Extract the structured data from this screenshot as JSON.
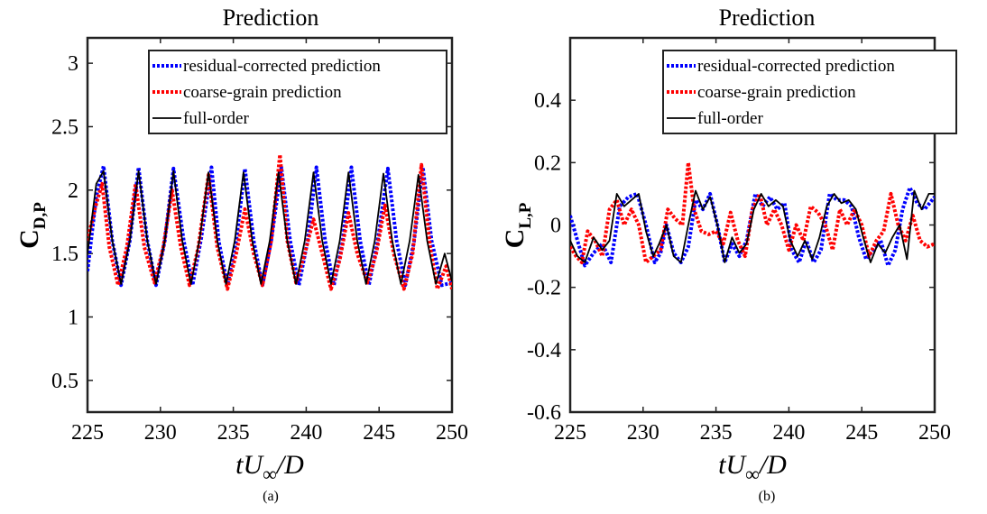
{
  "chart_data": [
    {
      "type": "line",
      "title": "Prediction",
      "caption": "(a)",
      "ylabel_main": "C",
      "ylabel_sub": "D,P",
      "xlabel_t": "t",
      "xlabel_u": "U",
      "xlabel_sub": "∞",
      "xlabel_tail": "/D",
      "xlim": [
        225,
        250
      ],
      "ylim": [
        0.25,
        3.2
      ],
      "xticks": [
        225,
        230,
        235,
        240,
        245,
        250
      ],
      "yticks": [
        0.5,
        1,
        1.5,
        2,
        2.5,
        3
      ],
      "ytick_labels": [
        "0.5",
        "1",
        "1.5",
        "2",
        "2.5",
        "3"
      ],
      "legend_position": "top-right",
      "series": [
        {
          "name": "residual-corrected prediction",
          "color": "#0000ff",
          "style": "dotted",
          "x": [
            225,
            225.6,
            226.1,
            226.7,
            227.3,
            227.9,
            228.5,
            229.1,
            229.7,
            230.3,
            230.9,
            231.6,
            232.2,
            232.8,
            233.5,
            234.0,
            234.6,
            235.2,
            235.8,
            236.4,
            237.0,
            237.6,
            238.3,
            238.9,
            239.5,
            240.1,
            240.7,
            241.3,
            241.9,
            242.5,
            243.1,
            243.7,
            244.3,
            244.9,
            245.6,
            246.2,
            246.8,
            247.4,
            248.0,
            248.6,
            249.3,
            250
          ],
          "y": [
            1.36,
            1.95,
            2.19,
            1.6,
            1.25,
            1.6,
            2.18,
            1.6,
            1.25,
            1.6,
            2.17,
            1.6,
            1.25,
            1.62,
            2.18,
            1.6,
            1.25,
            1.6,
            2.17,
            1.6,
            1.25,
            1.6,
            2.18,
            1.6,
            1.25,
            1.6,
            2.18,
            1.6,
            1.25,
            1.6,
            2.18,
            1.6,
            1.25,
            1.6,
            2.17,
            1.6,
            1.25,
            1.6,
            2.18,
            1.6,
            1.25,
            1.27
          ]
        },
        {
          "name": "coarse-grain prediction",
          "color": "#ff0000",
          "style": "dotted",
          "x": [
            225,
            225.5,
            226.0,
            226.5,
            227.1,
            227.7,
            228.3,
            228.9,
            229.6,
            230.2,
            230.8,
            231.4,
            232.0,
            232.6,
            233.3,
            233.9,
            234.6,
            235.2,
            235.8,
            236.4,
            237.0,
            237.6,
            238.2,
            238.7,
            239.3,
            239.9,
            240.5,
            241.1,
            241.7,
            242.3,
            242.9,
            243.5,
            244.2,
            244.8,
            245.4,
            246.0,
            246.7,
            247.3,
            247.9,
            248.5,
            249.0,
            249.6,
            250
          ],
          "y": [
            1.6,
            1.85,
            2.05,
            1.55,
            1.25,
            1.55,
            2.05,
            1.55,
            1.27,
            1.55,
            2.0,
            1.55,
            1.25,
            1.55,
            2.12,
            1.55,
            1.22,
            1.5,
            1.85,
            1.5,
            1.25,
            1.6,
            2.28,
            1.6,
            1.27,
            1.5,
            1.77,
            1.5,
            1.22,
            1.45,
            1.82,
            1.5,
            1.27,
            1.5,
            1.88,
            1.5,
            1.22,
            1.5,
            2.2,
            1.55,
            1.22,
            1.4,
            1.22
          ]
        },
        {
          "name": "full-order",
          "color": "#000000",
          "style": "solid",
          "x": [
            225,
            225.6,
            226.1,
            226.7,
            227.3,
            227.9,
            228.5,
            229.1,
            229.7,
            230.3,
            230.9,
            231.5,
            232.1,
            232.7,
            233.3,
            233.9,
            234.5,
            235.1,
            235.7,
            236.3,
            236.9,
            237.5,
            238.1,
            238.7,
            239.3,
            239.9,
            240.5,
            241.1,
            241.7,
            242.3,
            242.9,
            243.5,
            244.1,
            244.7,
            245.3,
            245.9,
            246.5,
            247.1,
            247.7,
            248.3,
            248.9,
            249.5,
            250
          ],
          "y": [
            1.5,
            2.05,
            2.15,
            1.6,
            1.26,
            1.6,
            2.15,
            1.6,
            1.26,
            1.6,
            2.15,
            1.6,
            1.26,
            1.62,
            2.14,
            1.6,
            1.26,
            1.6,
            2.14,
            1.6,
            1.26,
            1.6,
            2.14,
            1.6,
            1.26,
            1.6,
            2.14,
            1.6,
            1.26,
            1.6,
            2.14,
            1.6,
            1.26,
            1.6,
            2.13,
            1.6,
            1.26,
            1.6,
            2.12,
            1.6,
            1.26,
            1.5,
            1.28
          ]
        }
      ]
    },
    {
      "type": "line",
      "title": "Prediction",
      "caption": "(b)",
      "ylabel_main": "C",
      "ylabel_sub": "L,P",
      "xlabel_t": "t",
      "xlabel_u": "U",
      "xlabel_sub": "∞",
      "xlabel_tail": "/D",
      "xlim": [
        225,
        250
      ],
      "ylim": [
        -0.6,
        0.6
      ],
      "xticks": [
        225,
        230,
        235,
        240,
        245,
        250
      ],
      "yticks": [
        -0.6,
        -0.4,
        -0.2,
        0,
        0.2,
        0.4
      ],
      "ytick_labels": [
        "-0.6",
        "-0.4",
        "-0.2",
        "0",
        "0.2",
        "0.4"
      ],
      "legend_position": "top-right",
      "series": [
        {
          "name": "residual-corrected prediction",
          "color": "#0000ff",
          "style": "dotted",
          "x": [
            225,
            225.5,
            226.0,
            226.6,
            227.2,
            227.8,
            228.4,
            229.0,
            229.6,
            230.2,
            230.8,
            231.2,
            231.6,
            232.1,
            232.6,
            233.1,
            233.6,
            234.1,
            234.6,
            235.1,
            235.6,
            236.1,
            236.6,
            237.1,
            237.7,
            238.2,
            238.7,
            239.2,
            239.7,
            240.2,
            240.7,
            241.2,
            241.7,
            242.2,
            242.8,
            243.3,
            243.8,
            244.3,
            244.8,
            245.3,
            245.8,
            246.3,
            246.8,
            247.3,
            247.8,
            248.3,
            248.8,
            249.3,
            250
          ],
          "y": [
            0.03,
            -0.05,
            -0.13,
            -0.09,
            -0.06,
            -0.12,
            0.06,
            0.09,
            0.1,
            0.0,
            -0.12,
            -0.09,
            0.0,
            -0.09,
            -0.12,
            -0.07,
            0.08,
            0.05,
            0.1,
            0.0,
            -0.12,
            -0.06,
            -0.1,
            -0.05,
            0.1,
            0.06,
            0.09,
            0.05,
            0.07,
            -0.08,
            -0.12,
            -0.05,
            -0.12,
            -0.08,
            0.1,
            0.08,
            0.08,
            0.06,
            -0.04,
            -0.11,
            -0.08,
            -0.05,
            -0.13,
            -0.08,
            0.05,
            0.12,
            0.07,
            0.05,
            0.09
          ]
        },
        {
          "name": "coarse-grain prediction",
          "color": "#ff0000",
          "style": "dotted",
          "x": [
            225,
            225.4,
            225.8,
            226.2,
            226.7,
            227.2,
            227.7,
            228.2,
            228.7,
            229.2,
            229.7,
            230.2,
            230.7,
            231.2,
            231.7,
            232.2,
            232.7,
            233.1,
            233.5,
            234.0,
            234.5,
            235.0,
            235.5,
            236.0,
            236.5,
            237.0,
            237.5,
            238.0,
            238.5,
            239.0,
            239.5,
            240.0,
            240.5,
            241.0,
            241.5,
            242.0,
            242.5,
            243.0,
            243.5,
            244.0,
            244.5,
            245.0,
            245.5,
            246.0,
            246.5,
            247.0,
            247.5,
            248.0,
            248.5,
            249.0,
            249.5,
            250
          ],
          "y": [
            -0.07,
            -0.1,
            -0.12,
            -0.02,
            -0.05,
            -0.1,
            0.05,
            0.08,
            0.0,
            0.05,
            0.0,
            -0.12,
            -0.1,
            -0.08,
            0.05,
            0.02,
            0.0,
            0.2,
            0.05,
            -0.02,
            -0.03,
            -0.02,
            -0.06,
            0.04,
            -0.05,
            -0.1,
            0.05,
            0.1,
            0.0,
            0.05,
            0.0,
            -0.08,
            0.0,
            -0.05,
            0.06,
            0.04,
            0.0,
            -0.08,
            0.05,
            0.0,
            0.05,
            0.0,
            -0.1,
            -0.05,
            -0.02,
            0.1,
            0.0,
            -0.05,
            0.03,
            -0.05,
            -0.07,
            -0.06
          ]
        },
        {
          "name": "full-order",
          "color": "#000000",
          "style": "solid",
          "x": [
            225,
            225.5,
            226.0,
            226.6,
            227.2,
            227.7,
            228.2,
            228.7,
            229.2,
            229.7,
            230.2,
            230.7,
            231.1,
            231.6,
            232.1,
            232.6,
            233.1,
            233.6,
            234.1,
            234.6,
            235.1,
            235.6,
            236.1,
            236.6,
            237.1,
            237.6,
            238.1,
            238.6,
            239.1,
            239.6,
            240.1,
            240.6,
            241.1,
            241.6,
            242.1,
            242.6,
            243.1,
            243.6,
            244.1,
            244.6,
            245.1,
            245.6,
            246.1,
            246.6,
            247.1,
            247.6,
            248.1,
            248.6,
            249.1,
            249.6,
            250
          ],
          "y": [
            -0.05,
            -0.1,
            -0.12,
            -0.04,
            -0.08,
            -0.05,
            0.1,
            0.06,
            0.08,
            0.1,
            -0.02,
            -0.1,
            -0.06,
            0.0,
            -0.1,
            -0.12,
            0.0,
            0.11,
            0.05,
            0.09,
            0.0,
            -0.12,
            -0.04,
            -0.09,
            -0.06,
            0.05,
            0.1,
            0.06,
            0.08,
            0.06,
            -0.05,
            -0.1,
            -0.05,
            -0.11,
            -0.04,
            0.06,
            0.1,
            0.07,
            0.08,
            0.05,
            -0.04,
            -0.12,
            -0.06,
            -0.09,
            -0.04,
            0.0,
            -0.11,
            0.11,
            0.05,
            0.1,
            0.1
          ]
        }
      ]
    }
  ]
}
